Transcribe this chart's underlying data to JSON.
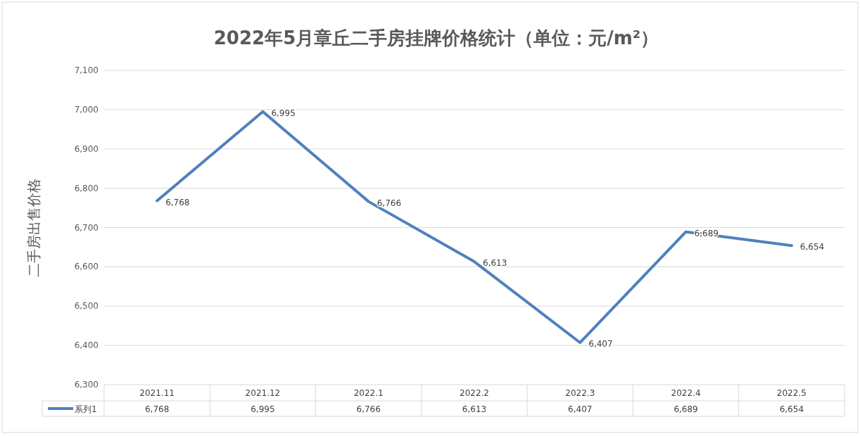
{
  "chart_data": {
    "type": "line",
    "title": "2022年5月章丘二手房挂牌价格统计（单位：元/m²）",
    "ylabel": "二手房出售价格",
    "categories": [
      "2021.11",
      "2021.12",
      "2022.1",
      "2022.2",
      "2022.3",
      "2022.4",
      "2022.5"
    ],
    "series": [
      {
        "name": "系列1",
        "color": "#4f81bd",
        "values": [
          6768,
          6995,
          6766,
          6613,
          6407,
          6689,
          6654
        ],
        "value_labels": [
          "6,768",
          "6,995",
          "6,766",
          "6,613",
          "6,407",
          "6,689",
          "6,654"
        ]
      }
    ],
    "ylim": [
      6300,
      7100
    ],
    "yticks": [
      {
        "value": 6300,
        "label": "6,300"
      },
      {
        "value": 6400,
        "label": "6,400"
      },
      {
        "value": 6500,
        "label": "6,500"
      },
      {
        "value": 6600,
        "label": "6,600"
      },
      {
        "value": 6700,
        "label": "6,700"
      },
      {
        "value": 6800,
        "label": "6,800"
      },
      {
        "value": 6900,
        "label": "6,900"
      },
      {
        "value": 7000,
        "label": "7,000"
      },
      {
        "value": 7100,
        "label": "7,100"
      }
    ],
    "grid": "y",
    "legend": "bottom"
  }
}
